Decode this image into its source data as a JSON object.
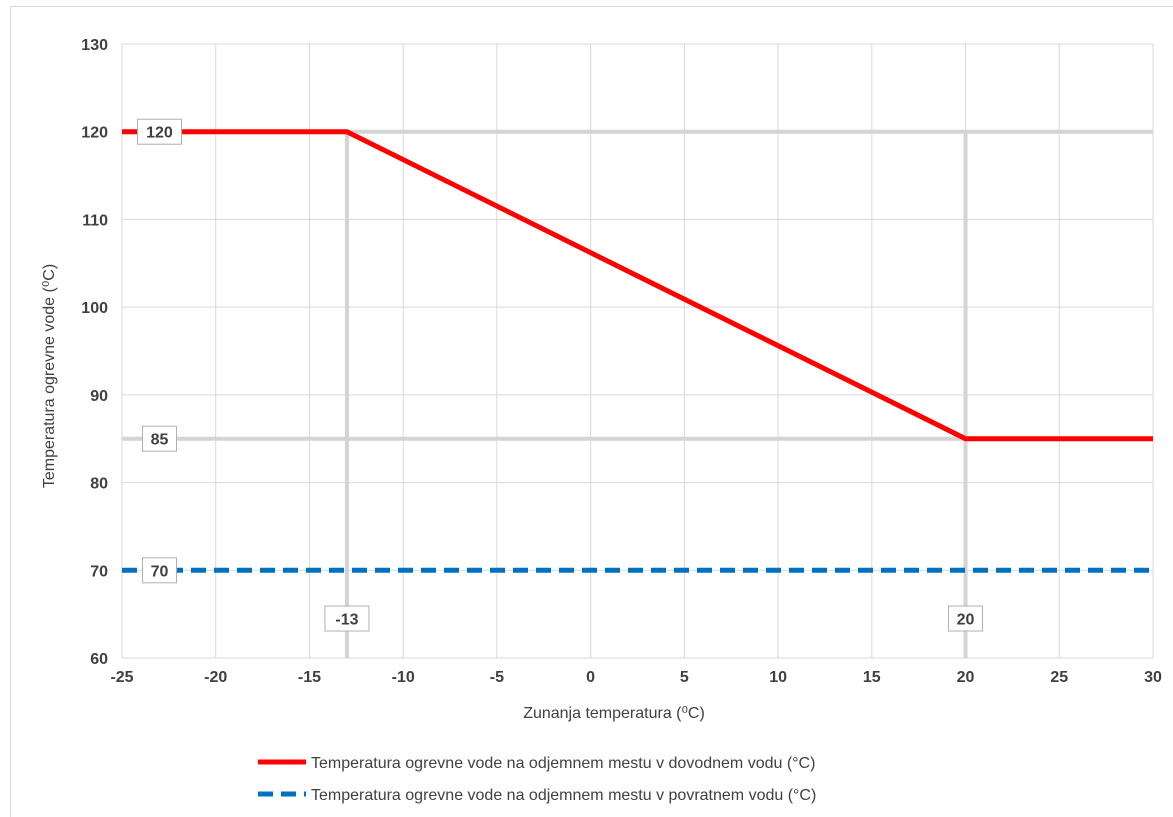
{
  "chart_data": {
    "type": "line",
    "xlabel": "Zunanja temperatura (⁰C)",
    "ylabel": "Temperatura ogrevne vode (⁰C)",
    "xlim": [
      -25,
      30
    ],
    "ylim": [
      60,
      130
    ],
    "x_ticks": [
      -25,
      -20,
      -15,
      -10,
      -5,
      0,
      5,
      10,
      15,
      20,
      25,
      30
    ],
    "y_ticks": [
      60,
      70,
      80,
      90,
      100,
      110,
      120,
      130
    ],
    "grid": true,
    "legend_position": "bottom",
    "series": [
      {
        "name": "Temperatura ogrevne vode na odjemnem mestu v dovodnem vodu (°C)",
        "color": "#ff0000",
        "style": "solid",
        "x": [
          -25,
          -13,
          20,
          30
        ],
        "y": [
          120,
          120,
          85,
          85
        ]
      },
      {
        "name": "Temperatura ogrevne vode na odjemnem mestu v povratnem vodu (°C)",
        "color": "#0070c0",
        "style": "dashed",
        "x": [
          -25,
          30
        ],
        "y": [
          70,
          70
        ]
      }
    ],
    "reference_lines": [
      {
        "axis": "y",
        "value": 120
      },
      {
        "axis": "y",
        "value": 85
      },
      {
        "axis": "x",
        "value": -13
      },
      {
        "axis": "x",
        "value": 20
      }
    ],
    "annotations": [
      {
        "text": "120",
        "x": -23,
        "y": 120
      },
      {
        "text": "85",
        "x": -23,
        "y": 85
      },
      {
        "text": "70",
        "x": -23,
        "y": 70
      },
      {
        "text": "-13",
        "x": -13,
        "y": 64.5
      },
      {
        "text": "20",
        "x": 20,
        "y": 64.5
      }
    ]
  }
}
